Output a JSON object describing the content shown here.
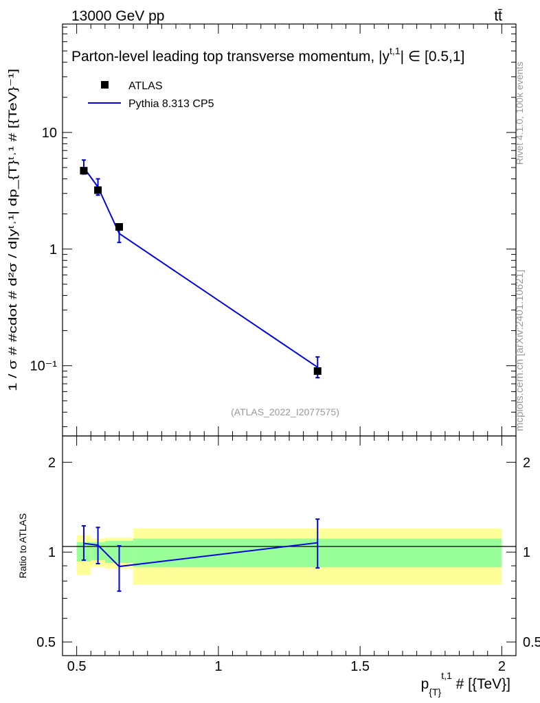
{
  "header": {
    "energy_label": "13000 GeV pp",
    "process_label": "tt̄"
  },
  "side_labels": {
    "rivet": "Rivet 4.1.0,  100k events",
    "mcplots": "mcplots.cern.ch [arXiv:2401.10621]"
  },
  "colors": {
    "mc_line": "#0000e6",
    "data_marker": "#000000",
    "band_inner": "#99ff99",
    "band_outer": "#ffff99",
    "watermark": "#999999"
  },
  "chart_data": [
    {
      "type": "line",
      "panel": "main",
      "title": "Parton-level leading top transverse momentum, |y",
      "title_sup": "t,1",
      "title_suffix": "| ∈ [0.5,1]",
      "analysis_tag": "(ATLAS_2022_I2077575)",
      "xlabel": "p",
      "xlabel_sub": "{T}",
      "xlabel_sup": "t,1",
      "xlabel_suffix": " # [{TeV}]",
      "ylabel": "1 / σ # #cdot # d²σ / d|yᵗ˒¹| dp_{T}ᵗ˒¹ # [{TeV}⁻¹]",
      "xlim": [
        0.45,
        2.05
      ],
      "ylim": [
        0.025,
        85
      ],
      "yscale": "log",
      "yticks": [
        {
          "value": 10,
          "label": "10"
        },
        {
          "value": 1,
          "label": "1"
        },
        {
          "value": 0.1,
          "label": "10⁻¹"
        }
      ],
      "legend": [
        {
          "label": "ATLAS",
          "kind": "marker"
        },
        {
          "label": "Pythia 8.313 CP5",
          "kind": "line"
        }
      ],
      "series": [
        {
          "name": "ATLAS",
          "x": [
            0.525,
            0.575,
            0.65,
            1.35
          ],
          "y": [
            4.7,
            3.2,
            1.55,
            0.09
          ],
          "xerr": [
            0.025,
            0.025,
            0.05,
            0.65
          ],
          "yerr_up": [
            0.3,
            0.25,
            0.12,
            0.012
          ],
          "yerr_down": [
            0.3,
            0.25,
            0.12,
            0.012
          ]
        },
        {
          "name": "Pythia 8.313 CP5",
          "x": [
            0.525,
            0.575,
            0.65,
            1.35
          ],
          "y": [
            5.0,
            3.4,
            1.36,
            0.097
          ],
          "yerr_up": [
            0.8,
            0.6,
            0.28,
            0.022
          ],
          "yerr_down": [
            0.6,
            0.5,
            0.22,
            0.018
          ]
        }
      ]
    },
    {
      "type": "line",
      "panel": "ratio",
      "ylabel": "Ratio to ATLAS",
      "xlim": [
        0.45,
        2.05
      ],
      "ylim": [
        0.45,
        2.45
      ],
      "yscale": "log",
      "xticks": [
        {
          "value": 0.5,
          "label": "0.5"
        },
        {
          "value": 1,
          "label": "1"
        },
        {
          "value": 1.5,
          "label": "1.5"
        },
        {
          "value": 2,
          "label": "2"
        }
      ],
      "yticks": [
        {
          "value": 0.5,
          "label": "0.5"
        },
        {
          "value": 1,
          "label": "1"
        },
        {
          "value": 2,
          "label": "2"
        }
      ],
      "bands": [
        {
          "x0": 0.5,
          "x1": 0.55,
          "inner": [
            0.93,
            1.08
          ],
          "outer": [
            0.84,
            1.14
          ]
        },
        {
          "x0": 0.55,
          "x1": 0.6,
          "inner": [
            0.94,
            1.08
          ],
          "outer": [
            0.89,
            1.11
          ]
        },
        {
          "x0": 0.6,
          "x1": 0.7,
          "inner": [
            0.92,
            1.09
          ],
          "outer": [
            0.88,
            1.12
          ]
        },
        {
          "x0": 0.7,
          "x1": 2.0,
          "inner": [
            0.89,
            1.11
          ],
          "outer": [
            0.78,
            1.2
          ]
        }
      ],
      "series": [
        {
          "name": "Pythia 8.313 CP5",
          "x": [
            0.525,
            0.575,
            0.65,
            1.35
          ],
          "y": [
            1.07,
            1.055,
            0.895,
            1.075
          ],
          "yerr_up": [
            0.155,
            0.155,
            0.155,
            0.215
          ],
          "yerr_down": [
            0.13,
            0.14,
            0.155,
            0.19
          ]
        }
      ]
    }
  ]
}
